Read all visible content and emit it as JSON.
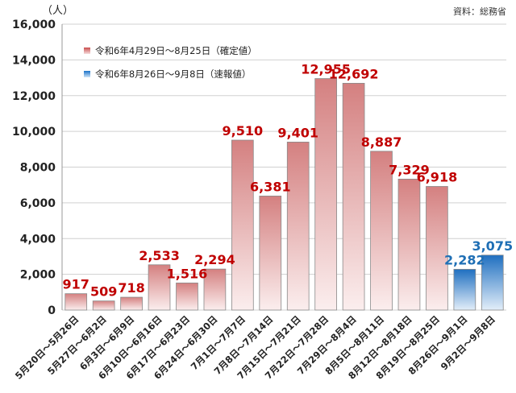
{
  "unit_label": "（人）",
  "source_label": "資料：総務省",
  "legend": [
    {
      "label": "令和6年4月29日～8月25日（確定値）",
      "swatch": "red"
    },
    {
      "label": "令和6年8月26日～9月8日（速報値）",
      "swatch": "blue"
    }
  ],
  "colors": {
    "confirmed_top": "#d48080",
    "confirmed_bottom": "#fbeeee",
    "confirmed_label": "#c00000",
    "preliminary_top": "#1f6fc0",
    "preliminary_bottom": "#e3eef9",
    "preliminary_label": "#1f6fb5",
    "grid": "#d0d0d0",
    "axis_text": "#222222"
  },
  "chart_data": {
    "type": "bar",
    "title": "",
    "xlabel": "",
    "ylabel": "（人）",
    "ylim": [
      0,
      16000
    ],
    "yticks": [
      0,
      2000,
      4000,
      6000,
      8000,
      10000,
      12000,
      14000,
      16000
    ],
    "ytick_labels": [
      "0",
      "2,000",
      "4,000",
      "6,000",
      "8,000",
      "10,000",
      "12,000",
      "14,000",
      "16,000"
    ],
    "grid": true,
    "legend_position": "top-left",
    "categories": [
      "5月20日～5月26日",
      "5月27日～6月2日",
      "6月3日～6月9日",
      "6月10日～6月16日",
      "6月17日～6月23日",
      "6月24日～6月30日",
      "7月1日～7月7日",
      "7月8日～7月14日",
      "7月15日～7月21日",
      "7月22日～7月28日",
      "7月29日～8月4日",
      "8月5日～8月11日",
      "8月12日～8月18日",
      "8月19日～8月25日",
      "8月26日～9月1日",
      "9月2日～9月8日"
    ],
    "values": [
      917,
      509,
      718,
      2533,
      1516,
      2294,
      9510,
      6381,
      9401,
      12955,
      12692,
      8887,
      7329,
      6918,
      2282,
      3075
    ],
    "value_labels": [
      "917",
      "509",
      "718",
      "2,533",
      "1,516",
      "2,294",
      "9,510",
      "6,381",
      "9,401",
      "12,955",
      "12,692",
      "8,887",
      "7,329",
      "6,918",
      "2,282",
      "3,075"
    ],
    "series_type": [
      "confirmed",
      "confirmed",
      "confirmed",
      "confirmed",
      "confirmed",
      "confirmed",
      "confirmed",
      "confirmed",
      "confirmed",
      "confirmed",
      "confirmed",
      "confirmed",
      "confirmed",
      "confirmed",
      "preliminary",
      "preliminary"
    ]
  }
}
